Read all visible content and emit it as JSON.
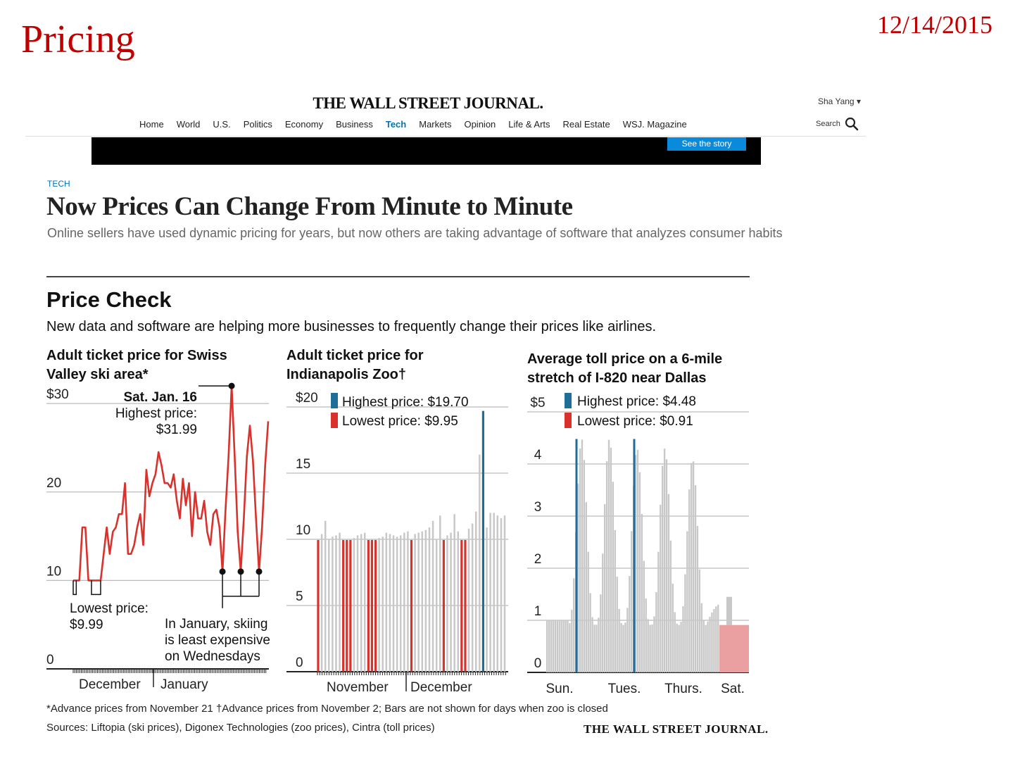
{
  "slide": {
    "title": "Pricing",
    "date": "12/14/2015"
  },
  "header": {
    "masthead": "THE WALL STREET JOURNAL.",
    "user": "Sha Yang ▾",
    "search_label": "Search",
    "nav": [
      "Home",
      "World",
      "U.S.",
      "Politics",
      "Economy",
      "Business",
      "Tech",
      "Markets",
      "Opinion",
      "Life & Arts",
      "Real Estate",
      "WSJ. Magazine"
    ],
    "active_nav": "Tech",
    "banner_button": "See the story"
  },
  "article": {
    "section": "TECH",
    "headline": "Now Prices Can Change From Minute to Minute",
    "dek": "Online sellers have used dynamic pricing for years, but now others are taking advantage of software that analyzes consumer habits"
  },
  "graphic": {
    "title": "Price Check",
    "subtitle": "New data and software are helping more businesses to frequently change their prices like airlines.",
    "footnote": "*Advance prices from November 21 †Advance prices from November 2; Bars are not shown for days when zoo is closed",
    "sources": "Sources: Liftopia (ski prices), Digonex Technologies (zoo prices), Cintra (toll prices)",
    "credit": "THE WALL STREET JOURNAL.",
    "colors": {
      "highest": "#1f6e99",
      "lowest": "#d9312b",
      "bar": "#c8c8c8",
      "line": "#d9312b",
      "lowest_light": "#eaa0a0"
    }
  },
  "chart_data": [
    {
      "type": "line",
      "title": "Adult ticket price for Swiss Valley ski area*",
      "ylim": [
        0,
        32
      ],
      "yticks": [
        0,
        10,
        20,
        30
      ],
      "ytick_labels": [
        "0",
        "10",
        "20",
        "$30"
      ],
      "xlabels": [
        "December",
        "January"
      ],
      "series": [
        {
          "values": [
            10,
            10,
            10,
            16,
            16,
            10,
            10,
            10,
            10,
            10,
            13,
            16,
            13,
            15.5,
            16,
            17.5,
            17.5,
            21,
            13,
            13,
            14,
            16,
            17.5,
            14,
            22.5,
            19.5,
            21,
            22,
            24.5,
            23,
            21,
            21,
            20.5,
            22,
            19,
            17,
            21.5,
            18.5,
            21,
            15,
            20,
            17,
            17,
            19,
            15.5,
            14,
            17.5,
            18,
            16,
            11,
            18,
            24,
            31.99,
            24,
            15.5,
            11,
            17,
            24,
            27.5,
            23.5,
            17,
            11,
            16,
            23,
            28
          ]
        }
      ],
      "annotations": {
        "highest": [
          "Sat. Jan. 16",
          "Highest price:",
          "$31.99"
        ],
        "lowest": [
          "Lowest price:",
          "$9.99"
        ],
        "note": [
          "In January, skiing",
          "is least expensive",
          "on Wednesdays"
        ]
      }
    },
    {
      "type": "bar",
      "title": "Adult ticket price for Indianapolis Zoo†",
      "ylim": [
        0,
        20
      ],
      "yticks": [
        0,
        5,
        10,
        15,
        20
      ],
      "ytick_labels": [
        "0",
        "5",
        "10",
        "15",
        "$20"
      ],
      "xlabels": [
        "November",
        "December"
      ],
      "legend": [
        "Highest price: $19.70",
        "Lowest price: $9.95"
      ],
      "values": [
        9.95,
        10.4,
        11.4,
        10,
        10.2,
        10.3,
        10.5,
        9.95,
        9.95,
        9.95,
        10.1,
        10.3,
        10.4,
        10.5,
        9.95,
        9.95,
        9.95,
        10.1,
        10.2,
        10.5,
        10.4,
        10.3,
        10.2,
        10.3,
        10.5,
        10.6,
        9.95,
        10.4,
        10.5,
        10.6,
        10.7,
        10.9,
        11.4,
        10,
        11.8,
        9.95,
        10.3,
        10.5,
        11.9,
        10.6,
        9.95,
        9.95,
        10.8,
        11.2,
        12.1,
        16.4,
        19.7,
        10.9,
        12,
        12,
        11.8,
        11.6,
        11.8
      ],
      "colors": [
        "lowest",
        "bar",
        "bar",
        "bar",
        "bar",
        "bar",
        "bar",
        "lowest",
        "lowest",
        "lowest",
        "bar",
        "bar",
        "bar",
        "bar",
        "lowest",
        "lowest",
        "lowest",
        "bar",
        "bar",
        "bar",
        "bar",
        "bar",
        "bar",
        "bar",
        "bar",
        "bar",
        "lowest",
        "bar",
        "bar",
        "bar",
        "bar",
        "bar",
        "bar",
        "bar",
        "bar",
        "lowest",
        "bar",
        "bar",
        "bar",
        "bar",
        "lowest",
        "lowest",
        "bar",
        "bar",
        "bar",
        "bar",
        "highest",
        "bar",
        "bar",
        "bar",
        "bar",
        "bar",
        "bar"
      ]
    },
    {
      "type": "bar",
      "title": "Average toll price on a 6-mile stretch of I-820 near Dallas",
      "ylim": [
        0,
        5
      ],
      "yticks": [
        0,
        1,
        2,
        3,
        4,
        5
      ],
      "ytick_labels": [
        "0",
        "1",
        "2",
        "3",
        "4",
        "$5"
      ],
      "xlabels": [
        "Sun.",
        "Tues.",
        "Thurs.",
        "Sat."
      ],
      "legend": [
        "Highest price: $4.48",
        "Lowest price: $0.91"
      ],
      "highest": 4.48,
      "lowest": 0.91,
      "daily_peaks": [
        1.4,
        4.48,
        4.48,
        4.3,
        4.3,
        4.1,
        1.9,
        1.0
      ]
    }
  ]
}
